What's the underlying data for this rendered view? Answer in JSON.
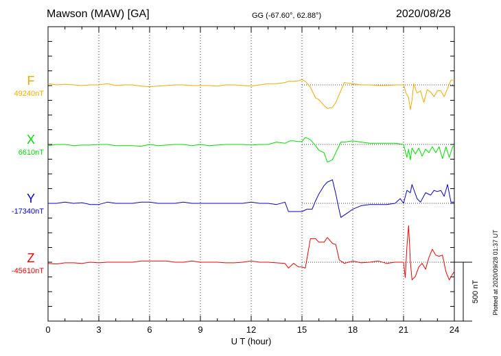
{
  "header": {
    "station": "Mawson (MAW)  [GA]",
    "coords": "GG (-67.60°,  62.88°)",
    "date": "2020/08/28",
    "plotted": "Plotted at 2020/09/28 01:37 UT"
  },
  "colors": {
    "F": "#f0aa00",
    "X": "#00dd00",
    "Y": "#0000cc",
    "Z": "#ee0000"
  },
  "chart_data": {
    "type": "line",
    "xlabel": "U T (hour)",
    "xlim": [
      0,
      24
    ],
    "xticks": [
      "0",
      "3",
      "6",
      "9",
      "12",
      "15",
      "18",
      "21",
      "24"
    ],
    "grid": true,
    "scale_bar": {
      "label": "500 nT",
      "value_nT": 500
    },
    "series": [
      {
        "name": "F",
        "baseline": "49240nT",
        "points": [
          [
            0,
            10
          ],
          [
            0.5,
            0
          ],
          [
            1,
            5
          ],
          [
            1.5,
            0
          ],
          [
            2,
            -5
          ],
          [
            2.5,
            0
          ],
          [
            3,
            0
          ],
          [
            3.5,
            10
          ],
          [
            4,
            -5
          ],
          [
            4.5,
            0
          ],
          [
            5,
            0
          ],
          [
            5.5,
            -10
          ],
          [
            6,
            -15
          ],
          [
            6.5,
            -10
          ],
          [
            7,
            -5
          ],
          [
            7.5,
            0
          ],
          [
            8,
            0
          ],
          [
            8.5,
            -5
          ],
          [
            9,
            -5
          ],
          [
            9.5,
            -5
          ],
          [
            10,
            -10
          ],
          [
            10.5,
            0
          ],
          [
            11,
            0
          ],
          [
            11.5,
            -5
          ],
          [
            12,
            -10
          ],
          [
            12.5,
            0
          ],
          [
            13,
            10
          ],
          [
            13.5,
            10
          ],
          [
            14,
            20
          ],
          [
            14.2,
            30
          ],
          [
            14.5,
            30
          ],
          [
            14.8,
            35
          ],
          [
            15,
            45
          ],
          [
            15.2,
            30
          ],
          [
            15.5,
            -20
          ],
          [
            15.8,
            -110
          ],
          [
            16,
            -125
          ],
          [
            16.3,
            -175
          ],
          [
            16.5,
            -200
          ],
          [
            16.8,
            -190
          ],
          [
            17,
            -150
          ],
          [
            17.2,
            -80
          ],
          [
            17.5,
            20
          ],
          [
            18,
            10
          ],
          [
            18.5,
            0
          ],
          [
            19,
            0
          ],
          [
            19.5,
            -5
          ],
          [
            20,
            -5
          ],
          [
            20.5,
            0
          ],
          [
            21,
            0
          ],
          [
            21.15,
            -70
          ],
          [
            21.3,
            -110
          ],
          [
            21.4,
            -210
          ],
          [
            21.5,
            -130
          ],
          [
            21.6,
            10
          ],
          [
            21.8,
            -70
          ],
          [
            22,
            -50
          ],
          [
            22.2,
            -150
          ],
          [
            22.4,
            -40
          ],
          [
            22.6,
            -60
          ],
          [
            22.8,
            -100
          ],
          [
            23,
            -50
          ],
          [
            23.2,
            -50
          ],
          [
            23.4,
            -100
          ],
          [
            23.6,
            -30
          ],
          [
            23.8,
            40
          ],
          [
            24,
            40
          ]
        ]
      },
      {
        "name": "X",
        "baseline": "6610nT",
        "points": [
          [
            0,
            -10
          ],
          [
            0.5,
            0
          ],
          [
            1,
            0
          ],
          [
            1.5,
            -10
          ],
          [
            2,
            -5
          ],
          [
            2.5,
            -5
          ],
          [
            3,
            0
          ],
          [
            3.5,
            0
          ],
          [
            4,
            -10
          ],
          [
            4.5,
            -10
          ],
          [
            5,
            -10
          ],
          [
            5.5,
            -15
          ],
          [
            6,
            0
          ],
          [
            6.5,
            -10
          ],
          [
            7,
            -5
          ],
          [
            7.5,
            0
          ],
          [
            8,
            0
          ],
          [
            8.5,
            -10
          ],
          [
            9,
            0
          ],
          [
            9.5,
            -10
          ],
          [
            10,
            -5
          ],
          [
            10.5,
            0
          ],
          [
            11,
            0
          ],
          [
            11.5,
            0
          ],
          [
            12,
            -5
          ],
          [
            12.5,
            0
          ],
          [
            13,
            0
          ],
          [
            13.5,
            20
          ],
          [
            14,
            10
          ],
          [
            14.3,
            30
          ],
          [
            14.5,
            30
          ],
          [
            14.8,
            25
          ],
          [
            15,
            25
          ],
          [
            15.2,
            60
          ],
          [
            15.5,
            40
          ],
          [
            15.8,
            -10
          ],
          [
            16,
            -50
          ],
          [
            16.3,
            -70
          ],
          [
            16.5,
            -150
          ],
          [
            16.8,
            -130
          ],
          [
            17,
            -70
          ],
          [
            17.3,
            20
          ],
          [
            17.5,
            20
          ],
          [
            18,
            30
          ],
          [
            18.5,
            20
          ],
          [
            19,
            10
          ],
          [
            19.5,
            10
          ],
          [
            20,
            10
          ],
          [
            20.5,
            10
          ],
          [
            21,
            0
          ],
          [
            21.2,
            -110
          ],
          [
            21.3,
            -40
          ],
          [
            21.4,
            -130
          ],
          [
            21.5,
            -30
          ],
          [
            21.7,
            -80
          ],
          [
            21.9,
            -30
          ],
          [
            22.1,
            -100
          ],
          [
            22.3,
            -40
          ],
          [
            22.5,
            -70
          ],
          [
            22.7,
            -20
          ],
          [
            22.9,
            -70
          ],
          [
            23.1,
            -20
          ],
          [
            23.3,
            -120
          ],
          [
            23.5,
            -20
          ],
          [
            23.7,
            -110
          ],
          [
            23.9,
            -20
          ],
          [
            24,
            -10
          ]
        ]
      },
      {
        "name": "Y",
        "baseline": "-17340nT",
        "points": [
          [
            0,
            0
          ],
          [
            0.5,
            0
          ],
          [
            1,
            10
          ],
          [
            1.5,
            0
          ],
          [
            2,
            5
          ],
          [
            2.5,
            -10
          ],
          [
            3,
            -10
          ],
          [
            3.5,
            10
          ],
          [
            4,
            0
          ],
          [
            4.5,
            0
          ],
          [
            5,
            0
          ],
          [
            5.5,
            10
          ],
          [
            6,
            10
          ],
          [
            6.5,
            0
          ],
          [
            7,
            0
          ],
          [
            7.5,
            0
          ],
          [
            8,
            10
          ],
          [
            8.5,
            0
          ],
          [
            9,
            0
          ],
          [
            9.5,
            0
          ],
          [
            10,
            0
          ],
          [
            10.5,
            0
          ],
          [
            11,
            0
          ],
          [
            11.5,
            0
          ],
          [
            12,
            10
          ],
          [
            12.5,
            0
          ],
          [
            13,
            0
          ],
          [
            13.5,
            -10
          ],
          [
            14,
            10
          ],
          [
            14.2,
            -70
          ],
          [
            14.5,
            -70
          ],
          [
            14.8,
            -70
          ],
          [
            15,
            -70
          ],
          [
            15.3,
            -50
          ],
          [
            15.6,
            -50
          ],
          [
            15.8,
            20
          ],
          [
            16,
            80
          ],
          [
            16.3,
            150
          ],
          [
            16.5,
            180
          ],
          [
            16.8,
            200
          ],
          [
            17,
            80
          ],
          [
            17.2,
            -60
          ],
          [
            17.3,
            -120
          ],
          [
            17.5,
            -100
          ],
          [
            18,
            -50
          ],
          [
            18.5,
            -20
          ],
          [
            19,
            -10
          ],
          [
            19.5,
            -10
          ],
          [
            20,
            -10
          ],
          [
            20.5,
            0
          ],
          [
            20.8,
            40
          ],
          [
            21,
            0
          ],
          [
            21.2,
            110
          ],
          [
            21.4,
            90
          ],
          [
            21.5,
            160
          ],
          [
            21.8,
            40
          ],
          [
            22,
            10
          ],
          [
            22.3,
            90
          ],
          [
            22.6,
            70
          ],
          [
            22.8,
            110
          ],
          [
            23,
            100
          ],
          [
            23.2,
            110
          ],
          [
            23.4,
            60
          ],
          [
            23.6,
            160
          ],
          [
            23.8,
            10
          ],
          [
            24,
            10
          ]
        ]
      },
      {
        "name": "Z",
        "baseline": "-45610nT",
        "points": [
          [
            0,
            -10
          ],
          [
            0.5,
            -15
          ],
          [
            1,
            -5
          ],
          [
            1.5,
            -5
          ],
          [
            2,
            -10
          ],
          [
            2.5,
            0
          ],
          [
            3,
            -5
          ],
          [
            3.5,
            0
          ],
          [
            4,
            0
          ],
          [
            4.5,
            0
          ],
          [
            5,
            0
          ],
          [
            5.5,
            10
          ],
          [
            6,
            10
          ],
          [
            6.5,
            10
          ],
          [
            7,
            10
          ],
          [
            7.5,
            0
          ],
          [
            8,
            0
          ],
          [
            8.5,
            10
          ],
          [
            9,
            0
          ],
          [
            9.5,
            0
          ],
          [
            10,
            0
          ],
          [
            10.5,
            -5
          ],
          [
            11,
            -5
          ],
          [
            11.5,
            0
          ],
          [
            12,
            10
          ],
          [
            12.5,
            0
          ],
          [
            13,
            0
          ],
          [
            13.5,
            -5
          ],
          [
            14,
            -10
          ],
          [
            14.2,
            -50
          ],
          [
            14.5,
            -10
          ],
          [
            14.8,
            -40
          ],
          [
            15,
            -40
          ],
          [
            15.2,
            -50
          ],
          [
            15.5,
            200
          ],
          [
            15.8,
            200
          ],
          [
            16,
            170
          ],
          [
            16.3,
            170
          ],
          [
            16.5,
            210
          ],
          [
            16.8,
            160
          ],
          [
            17,
            150
          ],
          [
            17.2,
            20
          ],
          [
            17.5,
            -10
          ],
          [
            18,
            10
          ],
          [
            18.5,
            -5
          ],
          [
            19,
            0
          ],
          [
            19.5,
            10
          ],
          [
            20,
            -10
          ],
          [
            20.5,
            0
          ],
          [
            21,
            0
          ],
          [
            21.1,
            -130
          ],
          [
            21.2,
            130
          ],
          [
            21.3,
            310
          ],
          [
            21.4,
            10
          ],
          [
            21.5,
            -150
          ],
          [
            21.7,
            -120
          ],
          [
            21.9,
            -40
          ],
          [
            22.1,
            -10
          ],
          [
            22.3,
            -60
          ],
          [
            22.5,
            40
          ],
          [
            22.7,
            110
          ],
          [
            22.9,
            60
          ],
          [
            23.1,
            50
          ],
          [
            23.3,
            60
          ],
          [
            23.5,
            -80
          ],
          [
            23.7,
            -150
          ],
          [
            23.9,
            -100
          ],
          [
            24,
            -80
          ]
        ]
      }
    ]
  }
}
